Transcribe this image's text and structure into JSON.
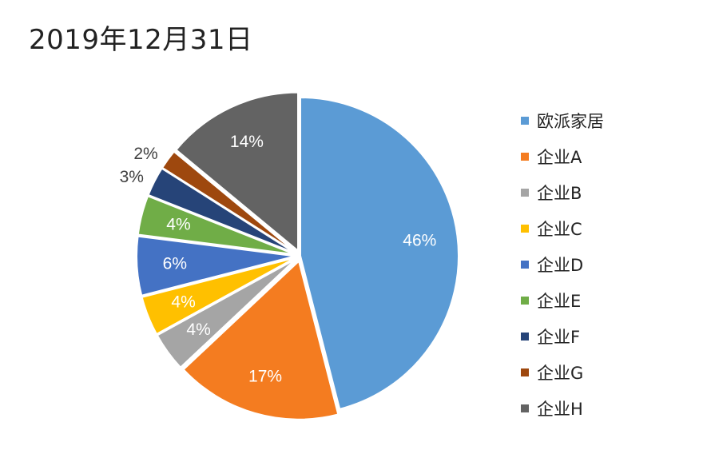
{
  "chart_data": {
    "type": "pie",
    "title": "2019年12月31日",
    "slices": [
      {
        "label": "欧派家居",
        "value": 46,
        "display": "46%",
        "color": "#5B9BD5",
        "label_inside": true,
        "label_color": "#ffffff"
      },
      {
        "label": "企业A",
        "value": 17,
        "display": "17%",
        "color": "#F47C20",
        "label_inside": true,
        "label_color": "#ffffff"
      },
      {
        "label": "企业B",
        "value": 4,
        "display": "4%",
        "color": "#A5A5A5",
        "label_inside": true,
        "label_color": "#ffffff"
      },
      {
        "label": "企业C",
        "value": 4,
        "display": "4%",
        "color": "#FFC000",
        "label_inside": true,
        "label_color": "#ffffff"
      },
      {
        "label": "企业D",
        "value": 6,
        "display": "6%",
        "color": "#4472C4",
        "label_inside": true,
        "label_color": "#ffffff"
      },
      {
        "label": "企业E",
        "value": 4,
        "display": "4%",
        "color": "#70AD47",
        "label_inside": true,
        "label_color": "#ffffff"
      },
      {
        "label": "企业F",
        "value": 3,
        "display": "3%",
        "color": "#264478",
        "label_inside": false,
        "label_color": "#404040"
      },
      {
        "label": "企业G",
        "value": 2,
        "display": "2%",
        "color": "#9E480E",
        "label_inside": false,
        "label_color": "#404040"
      },
      {
        "label": "企业H",
        "value": 14,
        "display": "14%",
        "color": "#636363",
        "label_inside": true,
        "label_color": "#ffffff"
      }
    ],
    "legend_position": "right"
  }
}
